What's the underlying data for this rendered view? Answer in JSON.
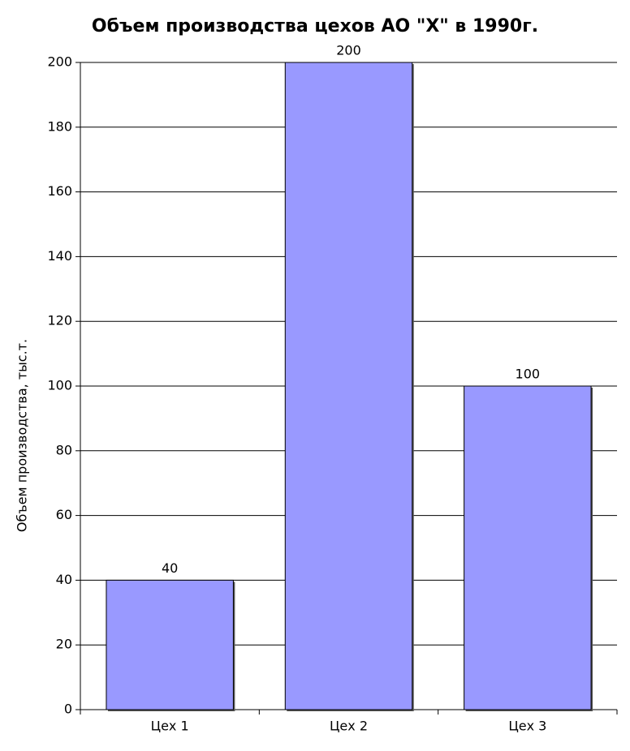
{
  "chart_data": {
    "type": "bar",
    "title": "Объем производства цехов АО \"Х\" в 1990г.",
    "y_label": "Объем производства, тыс.т.",
    "categories": [
      "Цех 1",
      "Цех 2",
      "Цех 3"
    ],
    "values": [
      40,
      200,
      100
    ],
    "color": "#9999ff",
    "ylim": [
      0,
      200
    ],
    "yticks": [
      0,
      20,
      40,
      60,
      80,
      100,
      120,
      140,
      160,
      180,
      200
    ],
    "grid": true
  }
}
